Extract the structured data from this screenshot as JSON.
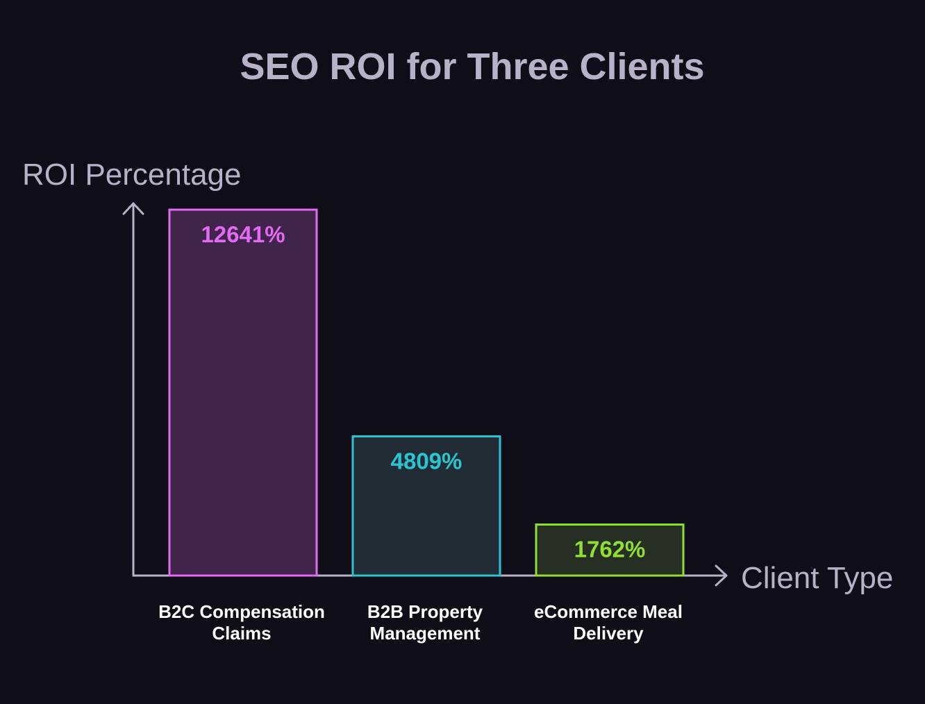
{
  "chart_data": {
    "type": "bar",
    "title": "SEO ROI for Three Clients",
    "ylabel": "ROI Percentage",
    "xlabel": "Client Type",
    "ylim": [
      0,
      12641
    ],
    "grid": false,
    "categories": [
      [
        "B2C Compensation",
        "Claims"
      ],
      [
        "B2B Property",
        "Management"
      ],
      [
        "eCommerce Meal",
        "Delivery"
      ]
    ],
    "values": [
      12641,
      4809,
      1762
    ],
    "value_labels": [
      "12641%",
      "4809%",
      "1762%"
    ],
    "colors": [
      {
        "stroke": "#e36af2",
        "fill": "#40244a"
      },
      {
        "stroke": "#2cc4d2",
        "fill": "#212c35"
      },
      {
        "stroke": "#8fe033",
        "fill": "#272f24"
      }
    ],
    "axis_color": "#b8b2c8",
    "background": "#0f0d17"
  }
}
